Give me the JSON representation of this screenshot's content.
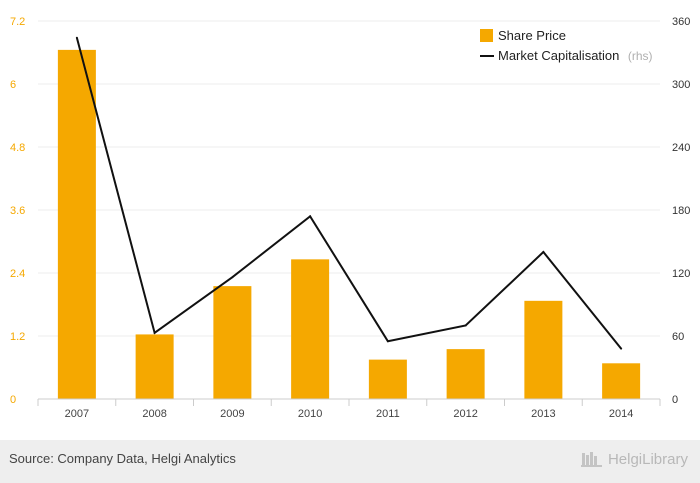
{
  "chart_data": {
    "type": "bar",
    "categories": [
      "2007",
      "2008",
      "2009",
      "2010",
      "2011",
      "2012",
      "2013",
      "2014"
    ],
    "series": [
      {
        "name": "Share Price",
        "kind": "bar",
        "axis": "left",
        "color": "#f5a800",
        "values": [
          6.65,
          1.23,
          2.15,
          2.66,
          0.75,
          0.95,
          1.87,
          0.68
        ]
      },
      {
        "name": "Market Capitalisation",
        "legend_suffix": "(rhs)",
        "kind": "line",
        "axis": "right",
        "color": "#111111",
        "values": [
          344,
          63,
          116,
          174,
          55,
          70,
          140,
          48
        ]
      }
    ],
    "y_left": {
      "min": 0,
      "max": 7.2,
      "ticks": [
        "0",
        "1.2",
        "2.4",
        "3.6",
        "4.8",
        "6",
        "7.2"
      ],
      "tick_values": [
        0,
        1.2,
        2.4,
        3.6,
        4.8,
        6,
        7.2
      ],
      "color": "#f5a800"
    },
    "y_right": {
      "min": 0,
      "max": 360,
      "ticks": [
        "0",
        "60",
        "120",
        "180",
        "240",
        "300",
        "360"
      ],
      "tick_values": [
        0,
        60,
        120,
        180,
        240,
        300,
        360
      ]
    },
    "grid": true,
    "legend_position": "top-right"
  },
  "footer": {
    "source": "Source: Company Data, Helgi Analytics",
    "brand": "HelgiLibrary"
  }
}
